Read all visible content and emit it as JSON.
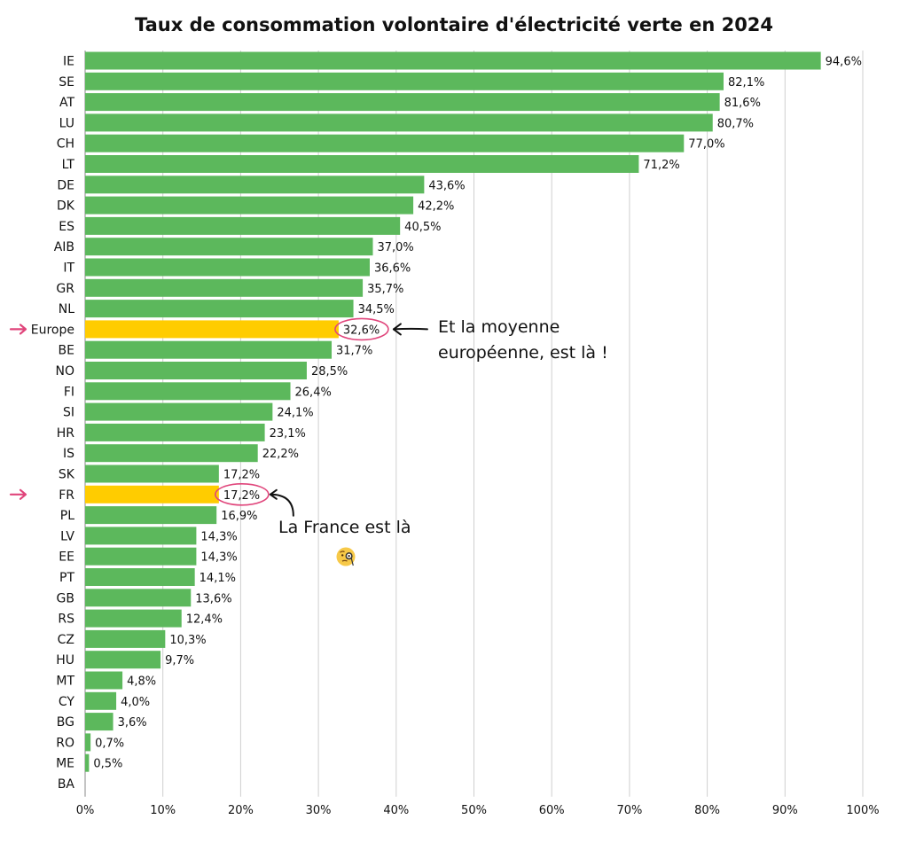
{
  "chart_data": {
    "type": "bar",
    "orientation": "horizontal",
    "title": "Taux de consommation volontaire d'électricité verte en 2024",
    "categories": [
      "IE",
      "SE",
      "AT",
      "LU",
      "CH",
      "LT",
      "DE",
      "DK",
      "ES",
      "AIB",
      "IT",
      "GR",
      "NL",
      "Europe",
      "BE",
      "NO",
      "FI",
      "SI",
      "HR",
      "IS",
      "SK",
      "FR",
      "PL",
      "LV",
      "EE",
      "PT",
      "GB",
      "RS",
      "CZ",
      "HU",
      "MT",
      "CY",
      "BG",
      "RO",
      "ME",
      "BA"
    ],
    "values": [
      94.6,
      82.1,
      81.6,
      80.7,
      77.0,
      71.2,
      43.6,
      42.2,
      40.5,
      37.0,
      36.6,
      35.7,
      34.5,
      32.6,
      31.7,
      28.5,
      26.4,
      24.1,
      23.1,
      22.2,
      17.2,
      17.2,
      16.9,
      14.3,
      14.3,
      14.1,
      13.6,
      12.4,
      10.3,
      9.7,
      4.8,
      4.0,
      3.6,
      0.7,
      0.5,
      null
    ],
    "value_labels": [
      "94,6%",
      "82,1%",
      "81,6%",
      "80,7%",
      "77,0%",
      "71,2%",
      "43,6%",
      "42,2%",
      "40,5%",
      "37,0%",
      "36,6%",
      "35,7%",
      "34,5%",
      "32,6%",
      "31,7%",
      "28,5%",
      "26,4%",
      "24,1%",
      "23,1%",
      "22,2%",
      "17,2%",
      "17,2%",
      "16,9%",
      "14,3%",
      "14,3%",
      "14,1%",
      "13,6%",
      "12,4%",
      "10,3%",
      "9,7%",
      "4,8%",
      "4,0%",
      "3,6%",
      "0,7%",
      "0,5%",
      ""
    ],
    "highlighted": [
      "Europe",
      "FR"
    ],
    "xlim": [
      0,
      100
    ],
    "xticks": [
      "0%",
      "10%",
      "20%",
      "30%",
      "40%",
      "50%",
      "60%",
      "70%",
      "80%",
      "90%",
      "100%"
    ],
    "grid": "vertical",
    "colors": {
      "bar": "#5cb85c",
      "highlight": "#ffcc00",
      "marker": "#e0457b",
      "grid": "#cfcfcf"
    }
  },
  "annotations": {
    "europe": [
      "Et la moyenne",
      "européenne, est là !"
    ],
    "france": "La France est là",
    "france_emoji": "face-with-monocle-icon"
  }
}
